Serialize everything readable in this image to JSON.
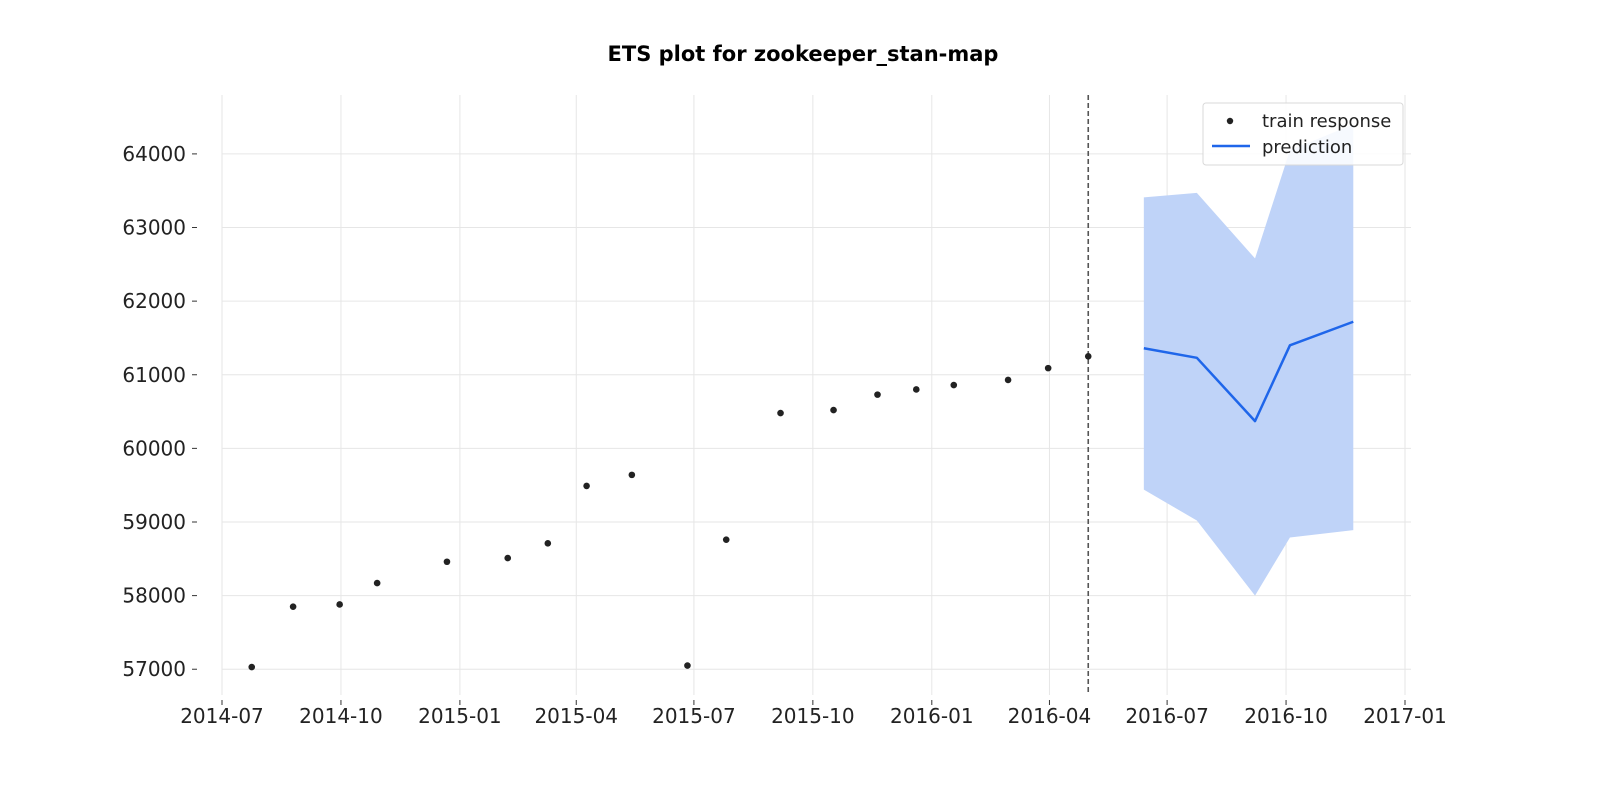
{
  "chart_data": {
    "type": "line",
    "title": "ETS plot for zookeeper_stan-map",
    "xlabel": "",
    "ylabel": "",
    "x_type": "date",
    "xlim": [
      "2014-07-01",
      "2017-01-01"
    ],
    "ylim": [
      56650,
      64800
    ],
    "x_ticks": [
      "2014-07-01",
      "2014-10-01",
      "2015-01-01",
      "2015-04-01",
      "2015-07-01",
      "2015-10-01",
      "2016-01-01",
      "2016-04-01",
      "2016-07-01",
      "2016-10-01",
      "2017-01-01"
    ],
    "x_tick_labels": [
      "2014-07",
      "2014-10",
      "2015-01",
      "2015-04",
      "2015-07",
      "2015-10",
      "2016-01",
      "2016-04",
      "2016-07",
      "2016-10",
      "2017-01"
    ],
    "y_ticks": [
      57000,
      58000,
      59000,
      60000,
      61000,
      62000,
      63000,
      64000
    ],
    "y_tick_labels": [
      "57000",
      "58000",
      "59000",
      "60000",
      "61000",
      "62000",
      "63000",
      "64000"
    ],
    "grid": true,
    "legend_position": "top-right",
    "vline": {
      "x": "2016-05-01",
      "style": "dashed",
      "color": "#555555"
    },
    "series": [
      {
        "name": "train response",
        "kind": "scatter",
        "color": "#222222",
        "x": [
          "2014-07-24",
          "2014-08-25",
          "2014-09-30",
          "2014-10-29",
          "2014-12-22",
          "2015-02-07",
          "2015-03-10",
          "2015-04-09",
          "2015-05-14",
          "2015-06-26",
          "2015-07-26",
          "2015-09-06",
          "2015-10-17",
          "2015-11-20",
          "2015-12-20",
          "2016-01-18",
          "2016-02-29",
          "2016-03-31",
          "2016-05-01"
        ],
        "y": [
          57030,
          57850,
          57880,
          58170,
          58460,
          58510,
          58710,
          59490,
          59640,
          57050,
          58760,
          60480,
          60520,
          60730,
          60800,
          60860,
          60930,
          61090,
          61250
        ]
      },
      {
        "name": "prediction",
        "kind": "line",
        "color": "#1f66ea",
        "x": [
          "2016-06-13",
          "2016-07-24",
          "2016-09-07",
          "2016-10-04",
          "2016-11-22"
        ],
        "y": [
          61360,
          61230,
          60370,
          61400,
          61720
        ]
      },
      {
        "kind": "band",
        "color": "#bfd3f8",
        "x": [
          "2016-06-13",
          "2016-07-24",
          "2016-09-07",
          "2016-10-04",
          "2016-11-22"
        ],
        "lower": [
          59440,
          59020,
          58000,
          58790,
          58890
        ],
        "upper": [
          63410,
          63470,
          62580,
          64050,
          64400
        ]
      }
    ]
  }
}
